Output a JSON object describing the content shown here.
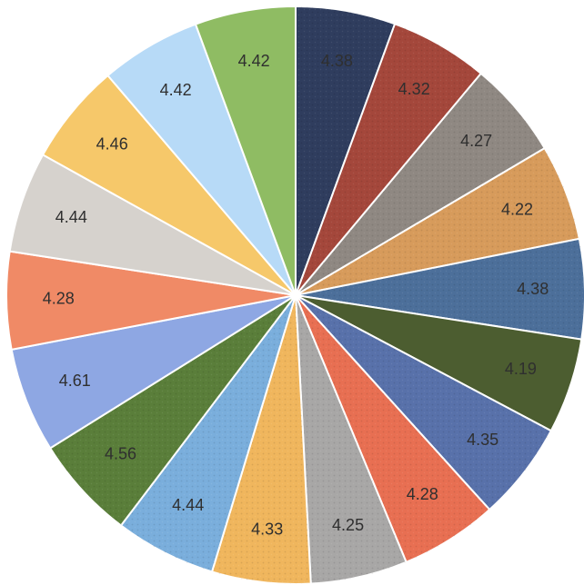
{
  "chart_data": {
    "type": "pie",
    "title": "",
    "values": [
      4.38,
      4.32,
      4.27,
      4.22,
      4.38,
      4.19,
      4.35,
      4.28,
      4.25,
      4.33,
      4.44,
      4.56,
      4.61,
      4.28,
      4.44,
      4.46,
      4.42,
      4.42
    ],
    "labels": [
      "4.38",
      "4.32",
      "4.27",
      "4.22",
      "4.38",
      "4.19",
      "4.35",
      "4.28",
      "4.25",
      "4.33",
      "4.44",
      "4.56",
      "4.61",
      "4.28",
      "4.44",
      "4.46",
      "4.42",
      "4.42"
    ],
    "colors": [
      "#2f3d5e",
      "#a4473b",
      "#8f8882",
      "#d79b5b",
      "#4c6f9a",
      "#4c5d30",
      "#5871aa",
      "#e86f52",
      "#a8a7a6",
      "#f0b65d",
      "#7aaedc",
      "#5a7e3a",
      "#8ea7e3",
      "#f08a66",
      "#d6d2cd",
      "#f6c86a",
      "#b7daf7",
      "#8fbc63"
    ],
    "patterned": [
      true,
      true,
      true,
      true,
      true,
      false,
      true,
      true,
      true,
      true,
      true,
      true,
      false,
      false,
      false,
      false,
      false,
      false
    ]
  }
}
